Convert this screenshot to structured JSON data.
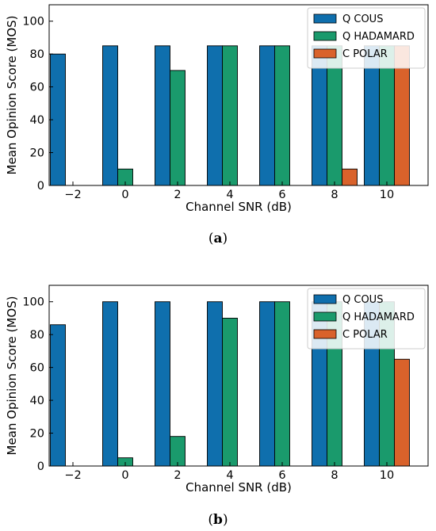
{
  "chart_data": [
    {
      "type": "bar",
      "caption_letter": "a",
      "categories": [
        "−2",
        "0",
        "2",
        "4",
        "6",
        "8",
        "10"
      ],
      "series": [
        {
          "name": "Q COUS",
          "color": "#0f6fad",
          "values": [
            80,
            85,
            85,
            85,
            85,
            85,
            85
          ]
        },
        {
          "name": "Q HADAMARD",
          "color": "#1a9a6c",
          "values": [
            0,
            10,
            70,
            85,
            85,
            85,
            85
          ]
        },
        {
          "name": "C POLAR",
          "color": "#d9622b",
          "values": [
            0,
            0,
            0,
            0,
            0,
            10,
            85
          ]
        }
      ],
      "xlabel": "Channel SNR (dB)",
      "ylabel": "Mean Opinion Score (MOS)",
      "ylim": [
        0,
        110
      ],
      "yticks": [
        0,
        20,
        40,
        60,
        80,
        100
      ],
      "grid": false,
      "legend_position": "top-right"
    },
    {
      "type": "bar",
      "caption_letter": "b",
      "categories": [
        "−2",
        "0",
        "2",
        "4",
        "6",
        "8",
        "10"
      ],
      "series": [
        {
          "name": "Q COUS",
          "color": "#0f6fad",
          "values": [
            86,
            100,
            100,
            100,
            100,
            100,
            100
          ]
        },
        {
          "name": "Q HADAMARD",
          "color": "#1a9a6c",
          "values": [
            0,
            5,
            18,
            90,
            100,
            100,
            100
          ]
        },
        {
          "name": "C POLAR",
          "color": "#d9622b",
          "values": [
            0,
            0,
            0,
            0,
            0,
            0,
            65
          ]
        }
      ],
      "xlabel": "Channel SNR (dB)",
      "ylabel": "Mean Opinion Score (MOS)",
      "ylim": [
        0,
        110
      ],
      "yticks": [
        0,
        20,
        40,
        60,
        80,
        100
      ],
      "grid": false,
      "legend_position": "top-right"
    }
  ]
}
